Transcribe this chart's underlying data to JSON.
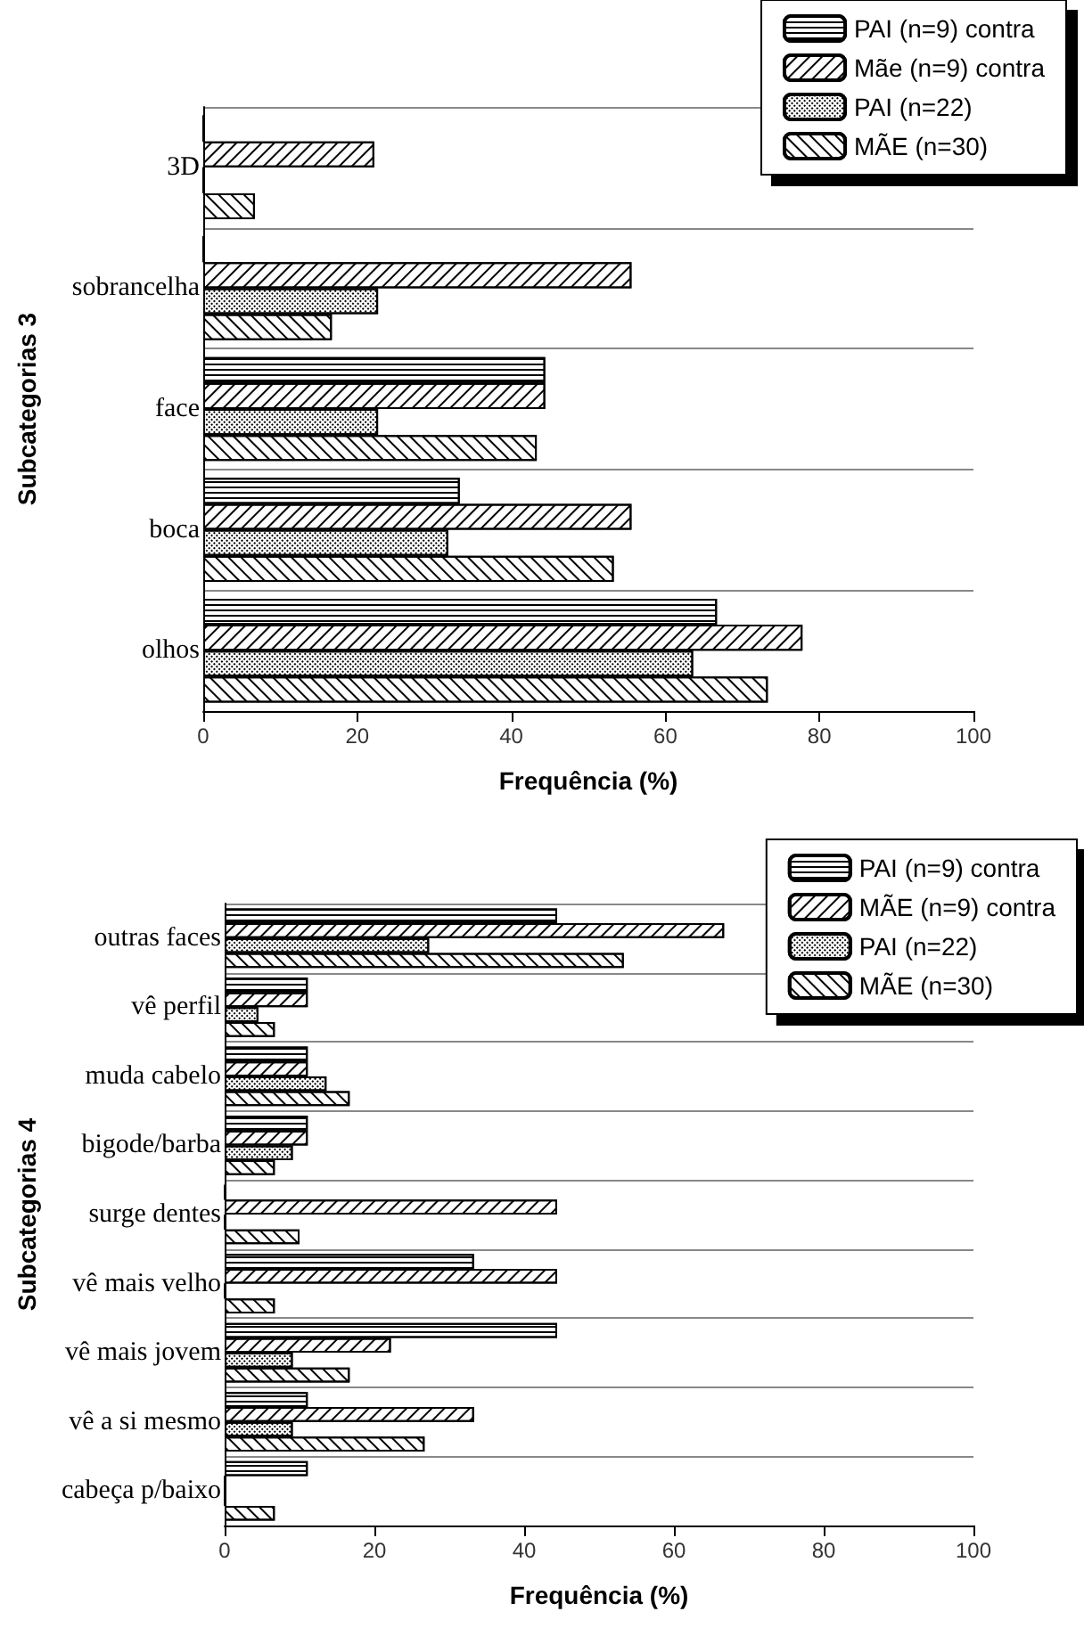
{
  "chart_data": [
    {
      "type": "bar",
      "orientation": "horizontal",
      "xlabel": "Frequência (%)",
      "ylabel": "Subcategorias 3",
      "categories": [
        "3D",
        "sobrancelha",
        "face",
        "boca",
        "olhos"
      ],
      "series": [
        {
          "name": "PAI (n=9) contra",
          "color": "#ffffff",
          "values": [
            0,
            0,
            44.4,
            33.3,
            66.7
          ]
        },
        {
          "name": "Mãe (n=9) contra",
          "color": "#ffffff",
          "values": [
            22.2,
            55.6,
            44.4,
            55.6,
            77.8
          ]
        },
        {
          "name": "PAI (n=22)",
          "color": "#ffffff",
          "values": [
            0,
            22.7,
            22.7,
            31.8,
            63.6
          ]
        },
        {
          "name": "MÃE (n=30)",
          "color": "#ffffff",
          "values": [
            6.7,
            16.7,
            43.3,
            53.3,
            73.3
          ]
        }
      ],
      "xlim": [
        0,
        100
      ],
      "xticks": [
        0,
        20,
        40,
        60,
        80,
        100
      ],
      "grid": "y",
      "legend": "top right"
    },
    {
      "type": "bar",
      "orientation": "horizontal",
      "xlabel": "Frequência (%)",
      "ylabel": "Subcategorias 4",
      "categories": [
        "outras faces",
        "vê perfil",
        "muda cabelo",
        "bigode/barba",
        "surge dentes",
        "vê mais velho",
        "vê mais jovem",
        "vê a si mesmo",
        "cabeça p/baixo"
      ],
      "series": [
        {
          "name": "PAI (n=9) contra",
          "color": "#ffffff",
          "values": [
            44.4,
            11.1,
            11.1,
            11.1,
            0,
            33.3,
            44.4,
            11.1,
            11.1
          ]
        },
        {
          "name": "MÃE (n=9) contra",
          "color": "#ffffff",
          "values": [
            66.7,
            11.1,
            11.1,
            11.1,
            44.4,
            44.4,
            22.2,
            33.3,
            0
          ]
        },
        {
          "name": "PAI (n=22)",
          "color": "#ffffff",
          "values": [
            27.3,
            4.5,
            13.6,
            9.1,
            0,
            0,
            9.1,
            9.1,
            0
          ]
        },
        {
          "name": "MÃE (n=30)",
          "color": "#ffffff",
          "values": [
            53.3,
            6.7,
            16.7,
            6.7,
            10,
            6.7,
            16.7,
            26.7,
            6.7
          ]
        }
      ],
      "xlim": [
        0,
        100
      ],
      "xticks": [
        0,
        20,
        40,
        60,
        80,
        100
      ],
      "grid": "y",
      "legend": "top right"
    }
  ]
}
